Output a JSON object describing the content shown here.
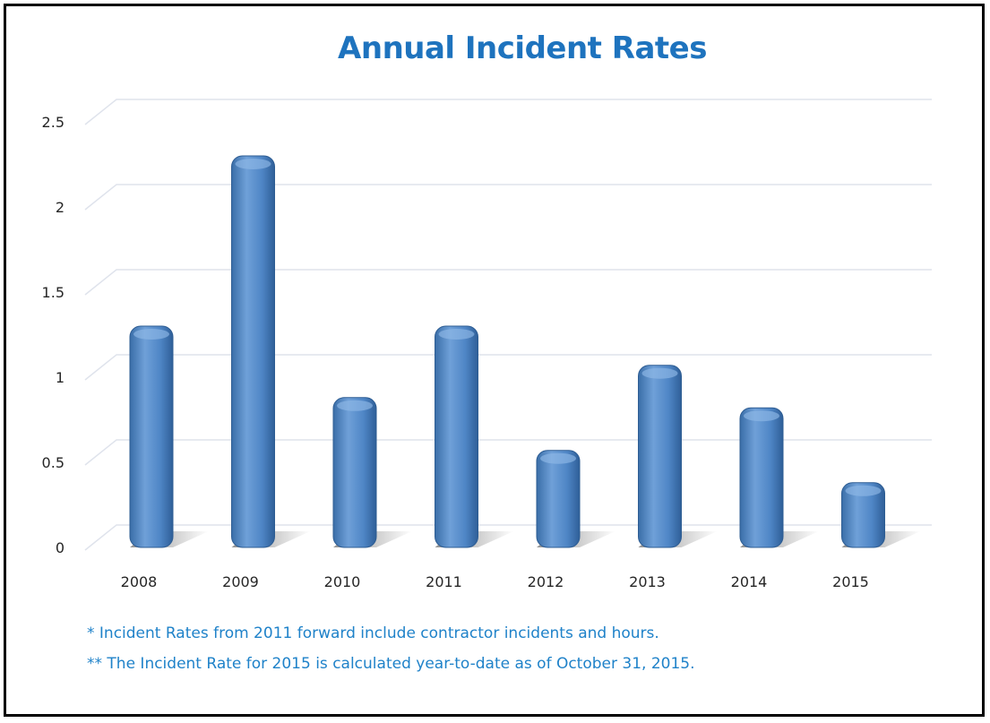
{
  "colors": {
    "title": "#1e73be",
    "bar": "#4f86c6",
    "note": "#1f82c9",
    "grid": "#dfe3ec"
  },
  "chart_data": {
    "type": "bar",
    "title": "Annual Incident Rates",
    "categories": [
      "2008",
      "2009",
      "2010",
      "2011",
      "2012",
      "2013",
      "2014",
      "2015"
    ],
    "values": [
      1.3,
      2.3,
      0.88,
      1.3,
      0.57,
      1.07,
      0.82,
      0.38
    ],
    "ylim": [
      0,
      2.5
    ],
    "yticks": [
      "0",
      "0.5",
      "1",
      "1.5",
      "2",
      "2.5"
    ],
    "grid": true,
    "xlabel": "",
    "ylabel": ""
  },
  "notes": [
    "* Incident Rates from 2011 forward include contractor incidents and hours.",
    "** The Incident Rate for 2015 is calculated year-to-date as of October 31, 2015."
  ]
}
